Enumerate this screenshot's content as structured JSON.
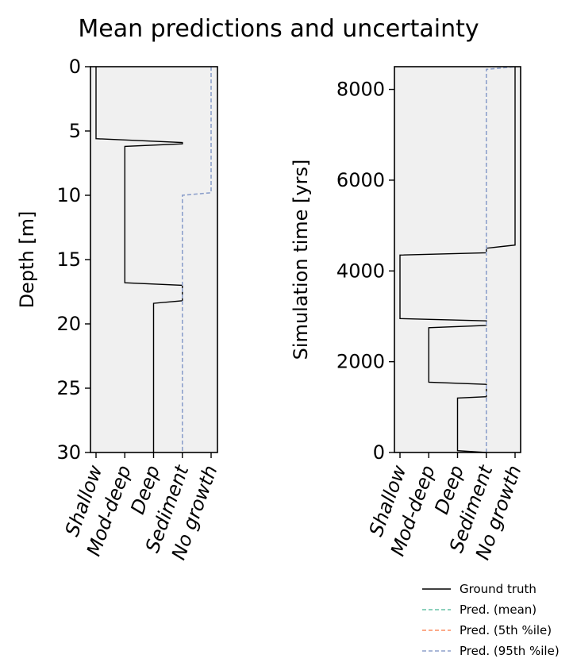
{
  "title": "Mean predictions and uncertainty",
  "categories": [
    "Shallow",
    "Mod-deep",
    "Deep",
    "Sediment",
    "No growth"
  ],
  "legend": {
    "placement": "bottom-right",
    "entries": [
      {
        "label": "Ground truth",
        "color": "#000000",
        "dashed": false
      },
      {
        "label": "Pred. (mean)",
        "color": "#66c2a5",
        "dashed": true
      },
      {
        "label": "Pred. (5th %ile)",
        "color": "#fc8d62",
        "dashed": true
      },
      {
        "label": "Pred. (95th %ile)",
        "color": "#8da0cb",
        "dashed": true
      }
    ]
  },
  "chart_data": [
    {
      "type": "line",
      "ylabel": "Depth [m]",
      "y_inverted": true,
      "ylim": [
        0,
        30
      ],
      "yticks": [
        0,
        5,
        10,
        15,
        20,
        25,
        30
      ],
      "background": "#f0f0f0",
      "series": [
        {
          "name": "Ground truth",
          "color": "#000000",
          "dashed": false,
          "points": [
            [
              0,
              0
            ],
            [
              0,
              5.6
            ],
            [
              3,
              5.9
            ],
            [
              3,
              6.0
            ],
            [
              1,
              6.2
            ],
            [
              1,
              16.8
            ],
            [
              3,
              17.0
            ],
            [
              3,
              18.2
            ],
            [
              2,
              18.4
            ],
            [
              2,
              30
            ]
          ]
        },
        {
          "name": "Pred. (95th %ile)",
          "color": "#8da0cb",
          "dashed": true,
          "points": [
            [
              4,
              0
            ],
            [
              4,
              9.8
            ],
            [
              3,
              10.0
            ],
            [
              3,
              30
            ]
          ]
        }
      ]
    },
    {
      "type": "line",
      "ylabel": "Simulation time [yrs]",
      "y_inverted": false,
      "ylim": [
        0,
        8500
      ],
      "yticks": [
        0,
        2000,
        4000,
        6000,
        8000
      ],
      "background": "#f0f0f0",
      "series": [
        {
          "name": "Ground truth",
          "color": "#000000",
          "dashed": false,
          "points": [
            [
              3,
              0
            ],
            [
              2,
              40
            ],
            [
              2,
              1200
            ],
            [
              3,
              1230
            ],
            [
              3,
              1500
            ],
            [
              1,
              1550
            ],
            [
              1,
              2750
            ],
            [
              3,
              2800
            ],
            [
              3,
              2900
            ],
            [
              0,
              2950
            ],
            [
              0,
              4350
            ],
            [
              3,
              4400
            ],
            [
              3,
              4500
            ],
            [
              4,
              4570
            ],
            [
              4,
              8500
            ]
          ]
        },
        {
          "name": "Pred. (95th %ile)",
          "color": "#8da0cb",
          "dashed": true,
          "points": [
            [
              3,
              0
            ],
            [
              3,
              8440
            ],
            [
              4,
              8500
            ]
          ]
        }
      ]
    }
  ]
}
